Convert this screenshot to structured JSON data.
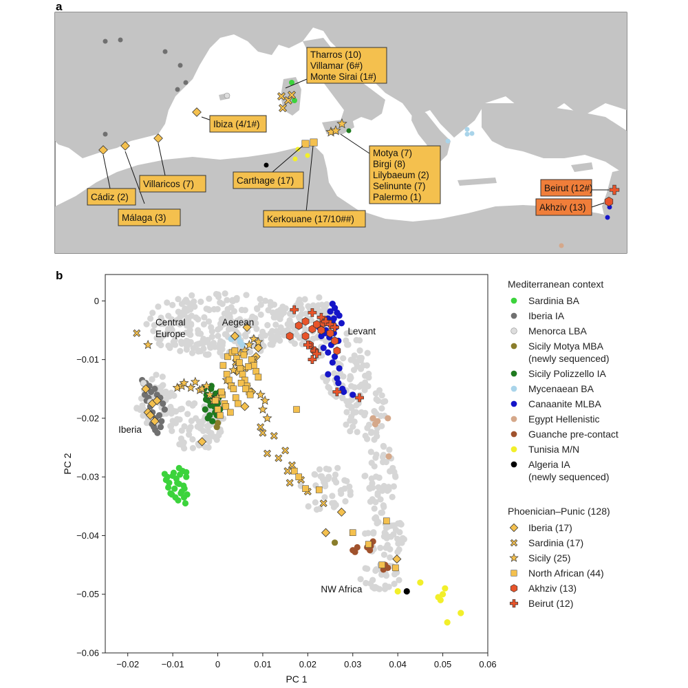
{
  "panel_a": {
    "label": "a",
    "sites": [
      {
        "name": "tharros",
        "text_lines": [
          "Tharros (10)",
          "Villamar (6#)",
          "Monte Sirai (1#)"
        ]
      },
      {
        "name": "ibiza",
        "text_lines": [
          "Ibiza (4/1#)"
        ]
      },
      {
        "name": "villaricos",
        "text_lines": [
          "Villaricos (7)"
        ]
      },
      {
        "name": "cadiz",
        "text_lines": [
          "Cádiz (2)"
        ]
      },
      {
        "name": "malaga",
        "text_lines": [
          "Málaga (3)"
        ]
      },
      {
        "name": "carthage",
        "text_lines": [
          "Carthage (17)"
        ]
      },
      {
        "name": "motya",
        "text_lines": [
          "Motya (7)",
          "Birgi (8)",
          "Lilybaeum (2)",
          "Selinunte (7)",
          "Palermo (1)"
        ]
      },
      {
        "name": "kerkouane",
        "text_lines": [
          "Kerkouane (17/10##)"
        ]
      },
      {
        "name": "beirut",
        "text_lines": [
          "Beirut (12#)"
        ]
      },
      {
        "name": "akhziv",
        "text_lines": [
          "Akhziv (13)"
        ]
      }
    ],
    "colors": {
      "land": "#c4c4c4",
      "sea": "#ffffff",
      "label_fill": "#f4c04e",
      "levant_label_fill": "#f07e3a"
    }
  },
  "panel_b": {
    "label": "b"
  },
  "chart_data": {
    "type": "scatter",
    "xlabel": "PC 1",
    "ylabel": "PC 2",
    "xlim": [
      -0.025,
      0.06
    ],
    "ylim": [
      -0.06,
      0.0045
    ],
    "xticks": [
      -0.02,
      -0.01,
      0,
      0.01,
      0.02,
      0.03,
      0.04,
      0.05,
      0.06
    ],
    "xtick_labels": [
      "−0.02",
      "−0.01",
      "0",
      "0.01",
      "0.02",
      "0.03",
      "0.04",
      "0.05",
      "0.06"
    ],
    "yticks": [
      0,
      -0.01,
      -0.02,
      -0.03,
      -0.04,
      -0.05,
      -0.06
    ],
    "ytick_labels": [
      "0",
      "−0.01",
      "−0.02",
      "−0.03",
      "−0.04",
      "−0.05",
      "−0.06"
    ],
    "grid": false,
    "region_labels": [
      {
        "text_lines": [
          "Central",
          "Europe"
        ],
        "x": -0.0105,
        "y": -0.0042
      },
      {
        "text_lines": [
          "Aegean"
        ],
        "x": 0.0045,
        "y": -0.0042
      },
      {
        "text_lines": [
          "Levant"
        ],
        "x": 0.032,
        "y": -0.0057
      },
      {
        "text_lines": [
          "Iberia"
        ],
        "x": -0.0195,
        "y": -0.0225
      },
      {
        "text_lines": [
          "NW Africa"
        ],
        "x": 0.0275,
        "y": -0.0497
      }
    ],
    "legend": {
      "placement": "right",
      "groups": [
        {
          "title": "Mediterranean context",
          "entries": [
            {
              "name": "Sardinia BA",
              "marker": "circle",
              "color": "#3cd33c"
            },
            {
              "name": "Iberia IA",
              "marker": "circle",
              "color": "#707070"
            },
            {
              "name": "Menorca LBA",
              "marker": "circle",
              "color": "#dddddd"
            },
            {
              "name": "Sicily Motya MBA\n(newly sequenced)",
              "marker": "circle",
              "color": "#8a7d2b"
            },
            {
              "name": "Sicily Polizzello IA",
              "marker": "circle",
              "color": "#1f7a1f"
            },
            {
              "name": "Mycenaean BA",
              "marker": "circle",
              "color": "#a9d4ea"
            },
            {
              "name": "Canaanite MLBA",
              "marker": "circle",
              "color": "#1515c8"
            },
            {
              "name": "Egypt Hellenistic",
              "marker": "circle",
              "color": "#d5a88a"
            },
            {
              "name": "Guanche pre-contact",
              "marker": "circle",
              "color": "#a0522d"
            },
            {
              "name": "Tunisia M/N",
              "marker": "circle",
              "color": "#f2ef2a"
            },
            {
              "name": "Algeria IA\n(newly sequenced)",
              "marker": "circle",
              "color": "#000000"
            }
          ]
        },
        {
          "title": "Phoenician–Punic (128)",
          "entries": [
            {
              "name": "Iberia (17)",
              "marker": "diamond",
              "color": "#f4c04e"
            },
            {
              "name": "Sardinia (17)",
              "marker": "x",
              "color": "#f4c04e"
            },
            {
              "name": "Sicily (25)",
              "marker": "star",
              "color": "#f4c04e"
            },
            {
              "name": "North African (44)",
              "marker": "square",
              "color": "#f4c04e"
            },
            {
              "name": "Akhziv (13)",
              "marker": "hexagon",
              "color": "#e8542a"
            },
            {
              "name": "Beirut (12)",
              "marker": "plus",
              "color": "#e8542a"
            }
          ]
        }
      ]
    },
    "series": [
      {
        "name": "Sardinia BA",
        "marker": "circle",
        "color": "#3cd33c",
        "x": [
          -0.0118,
          -0.0115,
          -0.011,
          -0.0105,
          -0.0098,
          -0.0092,
          -0.0086,
          -0.008,
          -0.0075,
          -0.0072,
          -0.007,
          -0.0078,
          -0.0084,
          -0.009,
          -0.0096,
          -0.0102,
          -0.0108,
          -0.0112,
          -0.0088,
          -0.0082,
          -0.0076,
          -0.007,
          -0.0094,
          -0.01,
          -0.0086,
          -0.0074,
          -0.0068
        ],
        "y": [
          -0.0295,
          -0.0305,
          -0.0318,
          -0.0328,
          -0.0293,
          -0.0303,
          -0.0312,
          -0.0325,
          -0.0335,
          -0.0345,
          -0.03,
          -0.029,
          -0.0296,
          -0.031,
          -0.032,
          -0.033,
          -0.031,
          -0.03,
          -0.034,
          -0.0328,
          -0.0315,
          -0.0292,
          -0.0335,
          -0.0298,
          -0.0285,
          -0.032,
          -0.033
        ]
      },
      {
        "name": "Iberia IA",
        "marker": "circle",
        "color": "#707070",
        "x": [
          -0.0168,
          -0.016,
          -0.0152,
          -0.0148,
          -0.014,
          -0.0135,
          -0.0128,
          -0.0122,
          -0.015,
          -0.0145,
          -0.0138,
          -0.013,
          -0.0125,
          -0.0158,
          -0.0142,
          -0.0134,
          -0.0118,
          -0.0162,
          -0.0154,
          -0.0146,
          -0.0139,
          -0.0127
        ],
        "y": [
          -0.0135,
          -0.014,
          -0.0145,
          -0.0155,
          -0.015,
          -0.016,
          -0.0165,
          -0.0175,
          -0.018,
          -0.019,
          -0.02,
          -0.0195,
          -0.0205,
          -0.017,
          -0.0215,
          -0.0225,
          -0.0185,
          -0.016,
          -0.0165,
          -0.021,
          -0.022,
          -0.0215
        ]
      },
      {
        "name": "Menorca LBA",
        "marker": "circle",
        "color": "#dddddd",
        "x": [
          -0.0165,
          -0.015,
          -0.0135
        ],
        "y": [
          -0.014,
          -0.0172,
          -0.017
        ]
      },
      {
        "name": "Sicily Motya MBA (newly sequenced)",
        "marker": "circle",
        "color": "#8a7d2b",
        "x": [
          0.0,
          -0.0002,
          0.026
        ],
        "y": [
          -0.0208,
          -0.0215,
          -0.0412
        ]
      },
      {
        "name": "Sicily Polizzello IA",
        "marker": "circle",
        "color": "#1f7a1f",
        "x": [
          -0.003,
          -0.0025,
          -0.002,
          -0.0015,
          -0.001,
          -0.0005,
          0.0,
          0.0005,
          -0.0028,
          -0.0018,
          -0.0008,
          0.0002,
          -0.0022,
          -0.0012,
          -0.0002,
          -0.0026,
          -0.0016,
          -0.0006,
          0.0004,
          -0.0014
        ],
        "y": [
          -0.015,
          -0.016,
          -0.017,
          -0.015,
          -0.0165,
          -0.0158,
          -0.0175,
          -0.0185,
          -0.0185,
          -0.0195,
          -0.018,
          -0.0165,
          -0.02,
          -0.0205,
          -0.0195,
          -0.0168,
          -0.0178,
          -0.019,
          -0.0155,
          -0.0145
        ]
      },
      {
        "name": "Mycenaean BA",
        "marker": "circle",
        "color": "#a9d4ea",
        "x": [
          0.003,
          0.0045,
          0.0055,
          0.005
        ],
        "y": [
          -0.0065,
          -0.0062,
          -0.0075,
          -0.007
        ]
      },
      {
        "name": "Canaanite MLBA",
        "marker": "circle",
        "color": "#1515c8",
        "x": [
          0.0255,
          0.026,
          0.025,
          0.0265,
          0.027,
          0.0245,
          0.0255,
          0.0275,
          0.0262,
          0.024,
          0.0258,
          0.0248,
          0.0268,
          0.0252,
          0.0235,
          0.0245,
          0.026,
          0.0255,
          0.027,
          0.0245,
          0.0265,
          0.0225,
          0.023,
          0.0238,
          0.025,
          0.0258,
          0.0268,
          0.0277,
          0.028,
          0.03
        ],
        "y": [
          -0.0005,
          -0.0012,
          -0.0018,
          -0.002,
          -0.0025,
          -0.003,
          -0.0035,
          -0.0038,
          -0.0045,
          -0.005,
          -0.0055,
          -0.0062,
          -0.0068,
          -0.0075,
          -0.008,
          -0.0088,
          -0.0095,
          -0.0105,
          -0.0115,
          -0.0125,
          -0.0132,
          -0.0045,
          -0.006,
          -0.0055,
          -0.004,
          -0.003,
          -0.014,
          -0.015,
          -0.0155,
          -0.016
        ]
      },
      {
        "name": "Egypt Hellenistic",
        "marker": "circle",
        "color": "#d5a88a",
        "x": [
          0.0345,
          0.0355,
          0.035,
          0.038,
          0.0378
        ],
        "y": [
          -0.02,
          -0.0205,
          -0.021,
          -0.0265,
          -0.02
        ]
      },
      {
        "name": "Guanche pre-contact",
        "marker": "circle",
        "color": "#a0522d",
        "x": [
          0.03,
          0.0305,
          0.031,
          0.0335,
          0.034,
          0.0345,
          0.0332,
          0.0338,
          0.0372,
          0.0378,
          0.0368
        ],
        "y": [
          -0.0425,
          -0.0428,
          -0.042,
          -0.0415,
          -0.0418,
          -0.041,
          -0.042,
          -0.0425,
          -0.045,
          -0.0455,
          -0.0458
        ]
      },
      {
        "name": "Tunisia M/N",
        "marker": "circle",
        "color": "#f2ef2a",
        "x": [
          0.04,
          0.045,
          0.049,
          0.0495,
          0.05,
          0.0505,
          0.051,
          0.054
        ],
        "y": [
          -0.0495,
          -0.048,
          -0.0505,
          -0.051,
          -0.05,
          -0.049,
          -0.0548,
          -0.0532
        ]
      },
      {
        "name": "Algeria IA (newly sequenced)",
        "marker": "circle",
        "color": "#000000",
        "x": [
          0.042
        ],
        "y": [
          -0.0495
        ]
      },
      {
        "name": "Iberia (17)",
        "marker": "diamond",
        "color": "#f4c04e",
        "x": [
          -0.0145,
          -0.0155,
          -0.014,
          -0.015,
          -0.016,
          -0.0135,
          0.0038,
          0.0065,
          0.009,
          0.0085,
          0.024,
          0.0275,
          0.0398,
          -0.0035,
          0.0042,
          0.006,
          0.0075
        ],
        "y": [
          -0.0175,
          -0.019,
          -0.0205,
          -0.0195,
          -0.015,
          -0.017,
          -0.006,
          -0.0045,
          -0.008,
          -0.0095,
          -0.0395,
          -0.036,
          -0.044,
          -0.024,
          -0.012,
          -0.018,
          -0.0155
        ]
      },
      {
        "name": "Sardinia (17)",
        "marker": "x",
        "color": "#f4c04e",
        "x": [
          -0.018,
          0.004,
          0.006,
          0.0065,
          0.0095,
          0.01,
          0.0125,
          0.0135,
          0.011,
          0.015,
          0.0165,
          0.0155,
          0.016,
          0.0185,
          0.02,
          0.0235,
          0.008
        ],
        "y": [
          -0.0055,
          -0.0105,
          -0.0115,
          -0.0148,
          -0.0215,
          -0.0225,
          -0.023,
          -0.0268,
          -0.026,
          -0.0255,
          -0.028,
          -0.029,
          -0.031,
          -0.0305,
          -0.0325,
          -0.0345,
          -0.01
        ]
      },
      {
        "name": "Sicily (25)",
        "marker": "star",
        "color": "#f4c04e",
        "x": [
          -0.0155,
          -0.009,
          -0.008,
          -0.0075,
          -0.006,
          -0.005,
          -0.004,
          -0.0035,
          -0.0025,
          -0.0018,
          -0.001,
          0.0,
          0.002,
          0.0028,
          0.0035,
          0.0045,
          0.005,
          0.006,
          0.007,
          0.008,
          0.009,
          0.0095,
          0.01,
          0.0105,
          0.011
        ],
        "y": [
          -0.0075,
          -0.0148,
          -0.0145,
          -0.014,
          -0.0148,
          -0.0138,
          -0.0152,
          -0.015,
          -0.0145,
          -0.016,
          -0.017,
          -0.0165,
          -0.0135,
          -0.0142,
          -0.0118,
          -0.0105,
          -0.009,
          -0.0085,
          -0.0075,
          -0.0065,
          -0.007,
          -0.016,
          -0.0185,
          -0.017,
          -0.02
        ]
      },
      {
        "name": "North African (44)",
        "marker": "square",
        "color": "#f4c04e",
        "x": [
          -0.0005,
          0.0,
          0.0005,
          0.001,
          0.0015,
          0.002,
          0.0025,
          0.003,
          0.0035,
          0.004,
          0.0045,
          0.005,
          0.0055,
          0.006,
          0.0065,
          0.007,
          0.0075,
          0.008,
          0.0085,
          0.009,
          0.0012,
          0.0022,
          0.0032,
          0.0042,
          0.0052,
          0.0062,
          0.0072,
          0.0008,
          0.0018,
          0.0028,
          0.0038,
          0.0048,
          0.0058,
          0.0068,
          0.0175,
          0.017,
          0.018,
          0.0195,
          0.0225,
          0.03,
          0.0335,
          0.0375,
          0.0365,
          0.0395
        ],
        "y": [
          -0.017,
          -0.0185,
          -0.0195,
          -0.016,
          -0.0175,
          -0.0125,
          -0.0135,
          -0.0145,
          -0.015,
          -0.0165,
          -0.0175,
          -0.0115,
          -0.0125,
          -0.0135,
          -0.0145,
          -0.0155,
          -0.01,
          -0.011,
          -0.012,
          -0.013,
          -0.011,
          -0.0095,
          -0.0088,
          -0.0098,
          -0.014,
          -0.015,
          -0.016,
          -0.0155,
          -0.018,
          -0.019,
          -0.0085,
          -0.0105,
          -0.0092,
          -0.0112,
          -0.0185,
          -0.029,
          -0.03,
          -0.032,
          -0.0322,
          -0.0395,
          -0.0415,
          -0.0375,
          -0.045,
          -0.0455
        ]
      },
      {
        "name": "Akhziv (13)",
        "marker": "hexagon",
        "color": "#e8542a",
        "x": [
          0.016,
          0.018,
          0.0195,
          0.021,
          0.022,
          0.023,
          0.0235,
          0.025,
          0.0195,
          0.0205,
          0.026,
          0.0265,
          0.0215
        ],
        "y": [
          -0.006,
          -0.0042,
          -0.0035,
          -0.0048,
          -0.004,
          -0.005,
          -0.0038,
          -0.0055,
          -0.006,
          -0.0075,
          -0.0068,
          -0.0085,
          -0.0085
        ]
      },
      {
        "name": "Beirut (12)",
        "marker": "plus",
        "color": "#e8542a",
        "x": [
          0.017,
          0.021,
          0.023,
          0.024,
          0.025,
          0.026,
          0.02,
          0.0215,
          0.021,
          0.022,
          0.0265,
          0.0315
        ],
        "y": [
          -0.0015,
          -0.002,
          -0.0028,
          -0.0035,
          -0.004,
          -0.0045,
          -0.0075,
          -0.0085,
          -0.01,
          -0.009,
          -0.0155,
          -0.0165
        ]
      }
    ]
  }
}
